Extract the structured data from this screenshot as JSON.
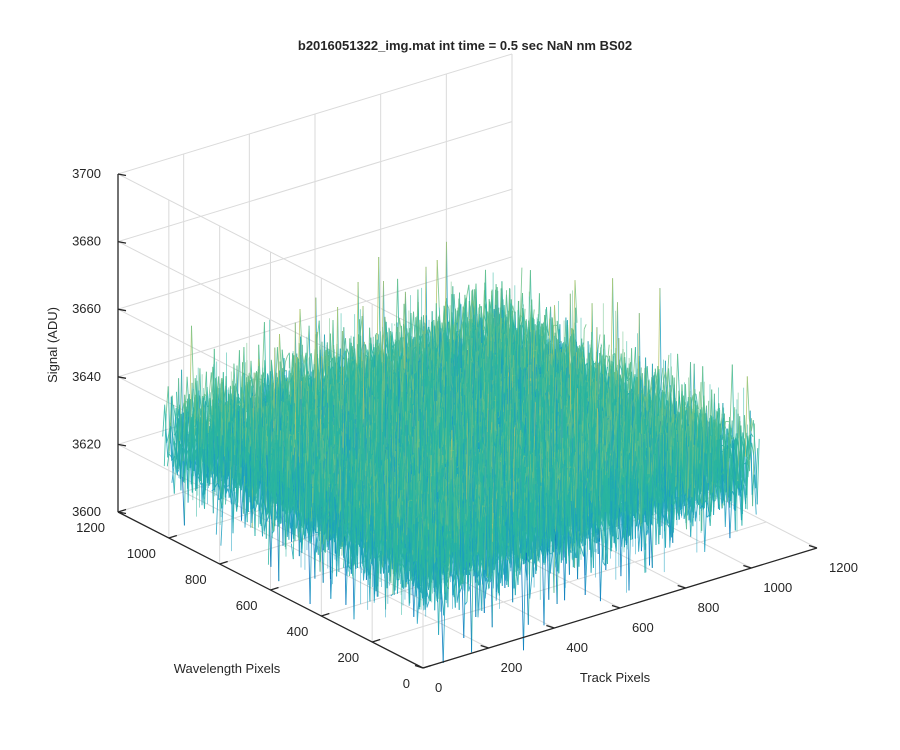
{
  "chart_data": {
    "type": "surface",
    "title": "b2016051322_img.mat int time = 0.5 sec  NaN nm BS02",
    "xlabel": "Track Pixels",
    "ylabel": "Wavelength Pixels",
    "zlabel": "Signal (ADU)",
    "xlim": [
      0,
      1200
    ],
    "ylim": [
      0,
      1200
    ],
    "zlim": [
      3600,
      3700
    ],
    "xticks": [
      "0",
      "200",
      "400",
      "600",
      "800",
      "1000",
      "1200"
    ],
    "yticks": [
      "0",
      "200",
      "400",
      "600",
      "800",
      "1000",
      "1200"
    ],
    "zticks": [
      "3600",
      "3620",
      "3640",
      "3660",
      "3680",
      "3700"
    ],
    "data_extent": {
      "x": [
        0,
        1024
      ],
      "y": [
        0,
        1024
      ]
    },
    "signal_mean": 3630,
    "signal_range": [
      3590,
      3690
    ],
    "colormap": [
      "#0072bd",
      "#1a9fc0",
      "#2ab5a0",
      "#6cc186",
      "#b6c56a",
      "#e0c04e"
    ],
    "grid": true
  }
}
